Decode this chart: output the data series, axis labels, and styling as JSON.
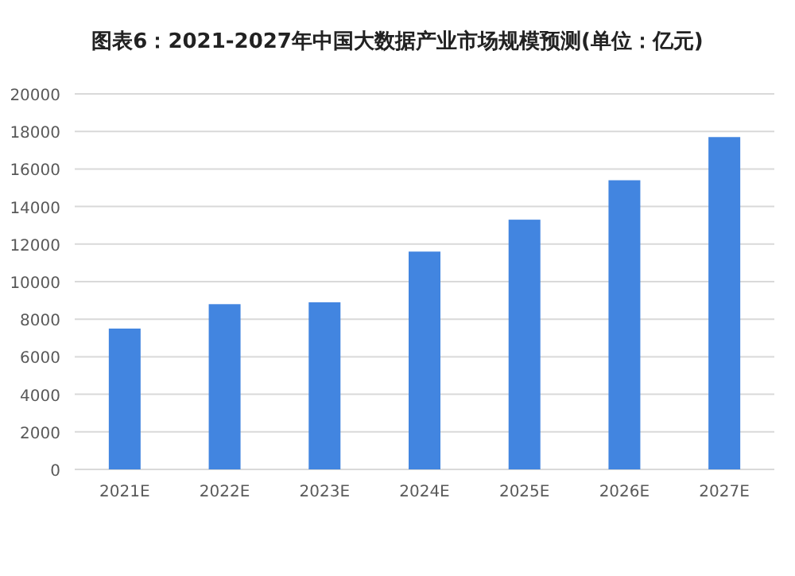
{
  "chart_data": {
    "type": "bar",
    "title": "图表6：2021-2027年中国大数据产业市场规模预测(单位：亿元)",
    "categories": [
      "2021E",
      "2022E",
      "2023E",
      "2024E",
      "2025E",
      "2026E",
      "2027E"
    ],
    "values": [
      7500,
      8800,
      8900,
      11600,
      13300,
      15400,
      17700
    ],
    "color": "#4285e0",
    "ylim": [
      0,
      20000
    ],
    "yticks": [
      0,
      2000,
      4000,
      6000,
      8000,
      10000,
      12000,
      14000,
      16000,
      18000,
      20000
    ],
    "grid": "y"
  }
}
